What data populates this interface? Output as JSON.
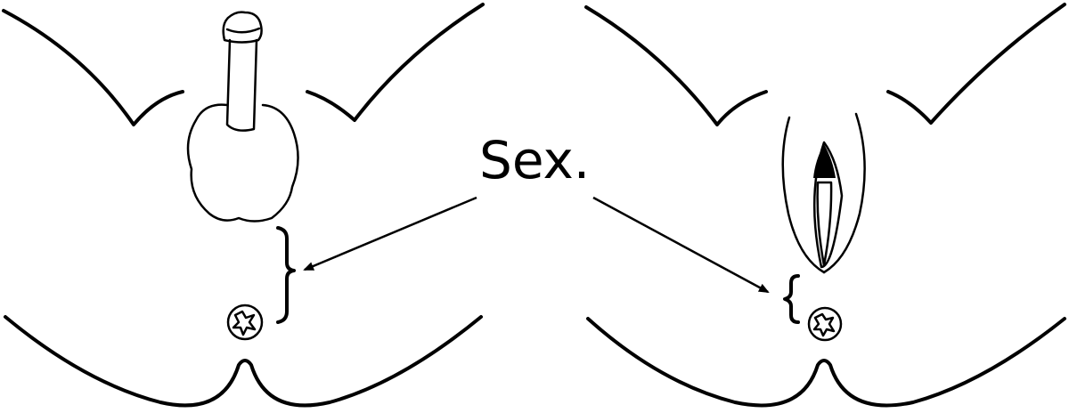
{
  "label": {
    "text": "Sex."
  },
  "panels": {
    "left": {
      "name": "male-anatomy"
    },
    "right": {
      "name": "female-anatomy"
    }
  },
  "colors": {
    "line": "#000000",
    "background": "#ffffff"
  }
}
